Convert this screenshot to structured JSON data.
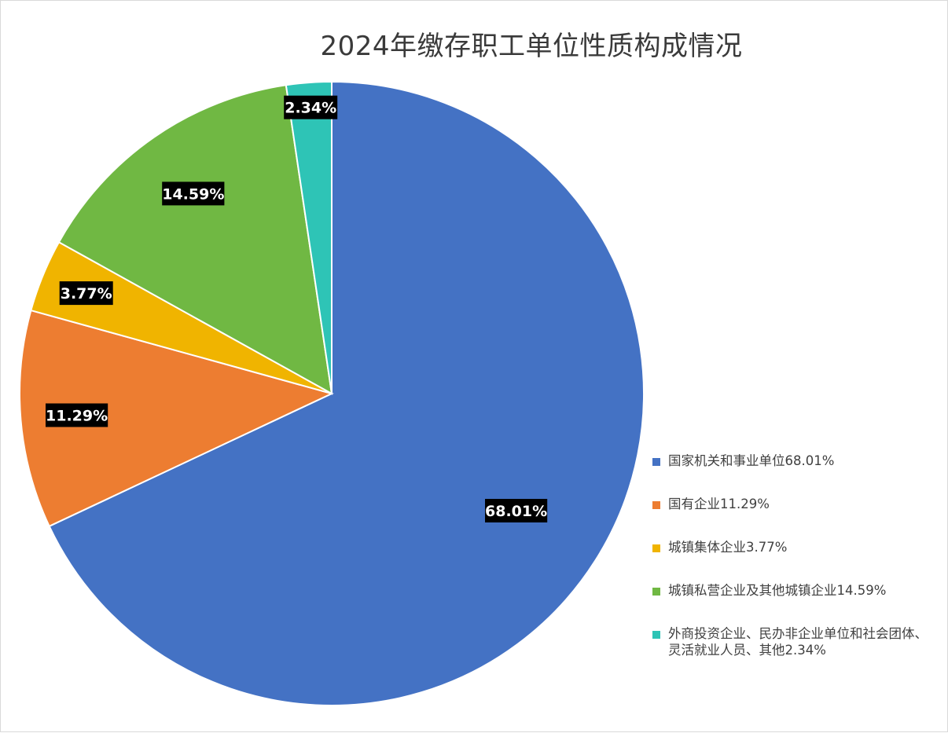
{
  "chart_data": {
    "type": "pie",
    "title": "2024年缴存职工单位性质构成情况",
    "categories": [
      "国家机关和事业单位68.01%",
      "国有企业11.29%",
      "城镇集体企业3.77%",
      "城镇私营企业及其他城镇企业14.59%",
      "外商投资企业、民办非企业单位和社会团体、灵活就业人员、其他2.34%"
    ],
    "values": [
      68.01,
      11.29,
      3.77,
      14.59,
      2.34
    ],
    "data_labels": [
      "68.01%",
      "11.29%",
      "3.77%",
      "14.59%",
      "2.34%"
    ],
    "colors": [
      "#4472c4",
      "#ed7d31",
      "#f0b400",
      "#70b843",
      "#2ec4b6"
    ],
    "start": "top",
    "direction": "clockwise",
    "legend_position": "right-bottom"
  }
}
